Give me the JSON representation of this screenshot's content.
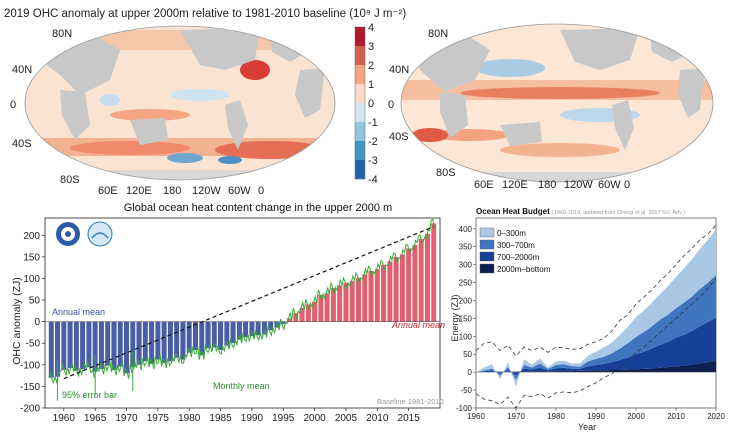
{
  "maps": {
    "title": "2019 OHC anomaly at upper 2000m relative to 1981-2010 baseline (10⁹ J m⁻²)",
    "lat_labels": [
      "80N",
      "40N",
      "0",
      "40S",
      "80S"
    ],
    "lon_labels": [
      "60E",
      "120E",
      "180",
      "120W",
      "60W",
      "0"
    ],
    "colorbar_ticks": [
      "4",
      "3",
      "2",
      "1",
      "0",
      "-1",
      "-2",
      "-3",
      "-4"
    ],
    "colorbar_colors": [
      "#b2182b",
      "#d6604d",
      "#f4a582",
      "#fddbc7",
      "#ffffff",
      "#d1e5f0",
      "#92c5de",
      "#4393c3",
      "#2166ac"
    ]
  },
  "charts": {
    "ohc": {
      "title": "Global ocean heat content change in the upper 2000 m",
      "ylabel": "OHC anomaly (ZJ)",
      "annotations": {
        "annual_mean_left": "Annual mean",
        "annual_mean_right": "Annual mean",
        "monthly_mean": "Monthly mean",
        "error_bar": "95% error bar",
        "baseline": "Baseline 1981-2010"
      },
      "x_ticks": [
        "1960",
        "1965",
        "1970",
        "1975",
        "1980",
        "1985",
        "1990",
        "1995",
        "2000",
        "2005",
        "2010",
        "2015"
      ],
      "y_ticks": [
        "200",
        "150",
        "100",
        "50",
        "0",
        "-50",
        "-100",
        "-150",
        "-200"
      ],
      "colors": {
        "negative": "#4a5ea6",
        "positive": "#e06070",
        "monthly": "#3aa83a",
        "trend": "#111111"
      }
    },
    "budget": {
      "title": "Ocean Heat Budget",
      "subtitle": "(1960-2019, updated from Cheng et al. 2017 Sci. Adv.)",
      "ylabel": "Energy (ZJ)",
      "xlabel": "Year",
      "legend": [
        "0–300m",
        "300–700m",
        "700–2000m",
        "2000m–bottom"
      ],
      "colors": [
        "#a9c8e6",
        "#3f74bf",
        "#163f96",
        "#0d1f4f"
      ],
      "x_ticks": [
        "1960",
        "1970",
        "1980",
        "1990",
        "2000",
        "2010",
        "2020"
      ],
      "y_ticks": [
        "400",
        "350",
        "300",
        "250",
        "200",
        "150",
        "100",
        "50",
        "0",
        "-50",
        "-100"
      ]
    }
  },
  "chart_data": [
    {
      "type": "bar",
      "title": "Global ocean heat content change in the upper 2000 m",
      "ylabel": "OHC anomaly (ZJ)",
      "xlim": [
        1957,
        2020
      ],
      "ylim": [
        -200,
        240
      ],
      "years": [
        1958,
        1959,
        1960,
        1961,
        1962,
        1963,
        1964,
        1965,
        1966,
        1967,
        1968,
        1969,
        1970,
        1971,
        1972,
        1973,
        1974,
        1975,
        1976,
        1977,
        1978,
        1979,
        1980,
        1981,
        1982,
        1983,
        1984,
        1985,
        1986,
        1987,
        1988,
        1989,
        1990,
        1991,
        1992,
        1993,
        1994,
        1995,
        1996,
        1997,
        1998,
        1999,
        2000,
        2001,
        2002,
        2003,
        2004,
        2005,
        2006,
        2007,
        2008,
        2009,
        2010,
        2011,
        2012,
        2013,
        2014,
        2015,
        2016,
        2017,
        2018,
        2019
      ],
      "values": [
        -130,
        -128,
        -112,
        -108,
        -114,
        -110,
        -106,
        -116,
        -110,
        -102,
        -112,
        -104,
        -120,
        -106,
        -100,
        -92,
        -98,
        -88,
        -96,
        -92,
        -84,
        -88,
        -72,
        -66,
        -78,
        -62,
        -60,
        -66,
        -56,
        -50,
        -42,
        -36,
        -34,
        -32,
        -30,
        -20,
        -14,
        -6,
        8,
        20,
        32,
        40,
        46,
        62,
        66,
        78,
        84,
        90,
        94,
        102,
        110,
        118,
        122,
        132,
        140,
        150,
        156,
        170,
        178,
        192,
        204,
        228
      ],
      "trend": {
        "x": [
          1960,
          2019
        ],
        "y": [
          -132,
          220
        ]
      },
      "baseline": "Baseline 1981-2010"
    },
    {
      "type": "area",
      "title": "Ocean Heat Budget",
      "xlabel": "Year",
      "ylabel": "Energy (ZJ)",
      "xlim": [
        1960,
        2020
      ],
      "ylim": [
        -100,
        430
      ],
      "x": [
        1960,
        1962,
        1964,
        1966,
        1968,
        1970,
        1972,
        1974,
        1976,
        1978,
        1980,
        1982,
        1984,
        1986,
        1988,
        1990,
        1992,
        1994,
        1996,
        1998,
        2000,
        2002,
        2004,
        2006,
        2008,
        2010,
        2012,
        2014,
        2016,
        2018,
        2020
      ],
      "series": [
        {
          "name": "2000m–bottom",
          "values": [
            0,
            0,
            1,
            1,
            1,
            1,
            2,
            2,
            2,
            2,
            3,
            3,
            3,
            4,
            4,
            5,
            5,
            6,
            6,
            7,
            8,
            9,
            10,
            12,
            14,
            16,
            18,
            21,
            24,
            28,
            32
          ]
        },
        {
          "name": "700–2000m",
          "values": [
            0,
            2,
            4,
            -5,
            6,
            -10,
            8,
            5,
            10,
            3,
            8,
            9,
            6,
            5,
            12,
            15,
            18,
            22,
            28,
            34,
            42,
            48,
            56,
            64,
            70,
            80,
            86,
            94,
            104,
            112,
            120
          ]
        },
        {
          "name": "300–700m",
          "values": [
            0,
            3,
            5,
            -6,
            7,
            -12,
            10,
            6,
            12,
            4,
            9,
            10,
            7,
            6,
            14,
            17,
            20,
            25,
            32,
            40,
            48,
            55,
            62,
            70,
            76,
            82,
            90,
            96,
            104,
            110,
            118
          ]
        },
        {
          "name": "0–300m",
          "values": [
            0,
            8,
            12,
            -10,
            14,
            -20,
            16,
            8,
            14,
            4,
            10,
            10,
            8,
            10,
            16,
            20,
            26,
            30,
            38,
            46,
            56,
            60,
            66,
            72,
            80,
            88,
            96,
            104,
            112,
            120,
            128
          ]
        }
      ],
      "uncertainty_upper": [
        60,
        80,
        85,
        60,
        75,
        45,
        70,
        60,
        70,
        55,
        70,
        68,
        64,
        65,
        78,
        85,
        95,
        115,
        145,
        160,
        190,
        210,
        230,
        255,
        275,
        300,
        325,
        345,
        370,
        385,
        410
      ],
      "uncertainty_lower": [
        -60,
        -75,
        -80,
        -90,
        -70,
        -100,
        -65,
        -68,
        -60,
        -72,
        -58,
        -55,
        -58,
        -52,
        -40,
        -30,
        -15,
        -5,
        15,
        30,
        55,
        70,
        90,
        110,
        130,
        150,
        170,
        190,
        210,
        235,
        260
      ]
    }
  ]
}
